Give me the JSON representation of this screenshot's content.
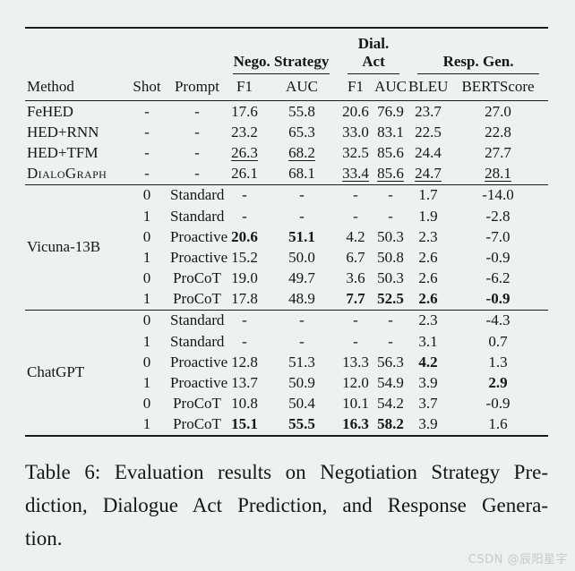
{
  "page": {
    "background_color": "#ecf2ed",
    "text_color": "#161616",
    "rule_color": "#1c1c1c"
  },
  "table": {
    "group_headers": [
      {
        "label": "Nego. Strategy"
      },
      {
        "label": "Dial. Act"
      },
      {
        "label": "Resp. Gen."
      }
    ],
    "columns": [
      "Method",
      "Shot",
      "Prompt",
      "F1",
      "AUC",
      "F1",
      "AUC",
      "BLEU",
      "BERTScore"
    ],
    "blocks": [
      {
        "rows": [
          {
            "method": "FeHED",
            "shot": "-",
            "prompt": "-",
            "values": [
              "17.6",
              "55.8",
              "20.6",
              "76.9",
              "23.7",
              "27.0"
            ]
          },
          {
            "method": "HED+RNN",
            "shot": "-",
            "prompt": "-",
            "values": [
              "23.2",
              "65.3",
              "33.0",
              "83.1",
              "22.5",
              "22.8"
            ]
          },
          {
            "method": "HED+TFM",
            "shot": "-",
            "prompt": "-",
            "values": [
              {
                "v": "26.3",
                "u": true
              },
              {
                "v": "68.2",
                "u": true
              },
              "32.5",
              "85.6",
              "24.4",
              "27.7"
            ]
          },
          {
            "method": {
              "v": "DialoGraph",
              "sc": true
            },
            "shot": "-",
            "prompt": "-",
            "values": [
              "26.1",
              "68.1",
              {
                "v": "33.4",
                "u": true
              },
              {
                "v": "85.6",
                "u": true
              },
              {
                "v": "24.7",
                "u": true
              },
              {
                "v": "28.1",
                "u": true
              }
            ]
          }
        ]
      },
      {
        "method": "Vicuna-13B",
        "rows": [
          {
            "shot": "0",
            "prompt": "Standard",
            "values": [
              "-",
              "-",
              "-",
              "-",
              "1.7",
              "-14.0"
            ]
          },
          {
            "shot": "1",
            "prompt": "Standard",
            "values": [
              "-",
              "-",
              "-",
              "-",
              "1.9",
              "-2.8"
            ]
          },
          {
            "shot": "0",
            "prompt": "Proactive",
            "values": [
              {
                "v": "20.6",
                "b": true
              },
              {
                "v": "51.1",
                "b": true
              },
              "4.2",
              "50.3",
              "2.3",
              "-7.0"
            ]
          },
          {
            "shot": "1",
            "prompt": "Proactive",
            "values": [
              "15.2",
              "50.0",
              "6.7",
              "50.8",
              "2.6",
              "-0.9"
            ]
          },
          {
            "shot": "0",
            "prompt": "ProCoT",
            "values": [
              "19.0",
              "49.7",
              "3.6",
              "50.3",
              "2.6",
              "-6.2"
            ]
          },
          {
            "shot": "1",
            "prompt": "ProCoT",
            "values": [
              "17.8",
              "48.9",
              {
                "v": "7.7",
                "b": true
              },
              {
                "v": "52.5",
                "b": true
              },
              {
                "v": "2.6",
                "b": true
              },
              {
                "v": "-0.9",
                "b": true
              }
            ]
          }
        ]
      },
      {
        "method": "ChatGPT",
        "rows": [
          {
            "shot": "0",
            "prompt": "Standard",
            "values": [
              "-",
              "-",
              "-",
              "-",
              "2.3",
              "-4.3"
            ]
          },
          {
            "shot": "1",
            "prompt": "Standard",
            "values": [
              "-",
              "-",
              "-",
              "-",
              "3.1",
              "0.7"
            ]
          },
          {
            "shot": "0",
            "prompt": "Proactive",
            "values": [
              "12.8",
              "51.3",
              "13.3",
              "56.3",
              {
                "v": "4.2",
                "b": true
              },
              "1.3"
            ]
          },
          {
            "shot": "1",
            "prompt": "Proactive",
            "values": [
              "13.7",
              "50.9",
              "12.0",
              "54.9",
              "3.9",
              {
                "v": "2.9",
                "b": true
              }
            ]
          },
          {
            "shot": "0",
            "prompt": "ProCoT",
            "values": [
              "10.8",
              "50.4",
              "10.1",
              "54.2",
              "3.7",
              "-0.9"
            ]
          },
          {
            "shot": "1",
            "prompt": "ProCoT",
            "values": [
              {
                "v": "15.1",
                "b": true
              },
              {
                "v": "55.5",
                "b": true
              },
              {
                "v": "16.3",
                "b": true
              },
              {
                "v": "58.2",
                "b": true
              },
              "3.9",
              "1.6"
            ]
          }
        ]
      }
    ]
  },
  "caption": {
    "full": "Table 6: Evaluation results on Negotiation Strategy Prediction, Dialogue Act Prediction, and Response Generation.",
    "lines": [
      "Table 6: Evaluation results on Negotiation Strategy Pre-",
      "diction, Dialogue Act Prediction, and Response Genera-",
      "tion."
    ]
  },
  "watermark": "CSDN @辰阳星宇"
}
